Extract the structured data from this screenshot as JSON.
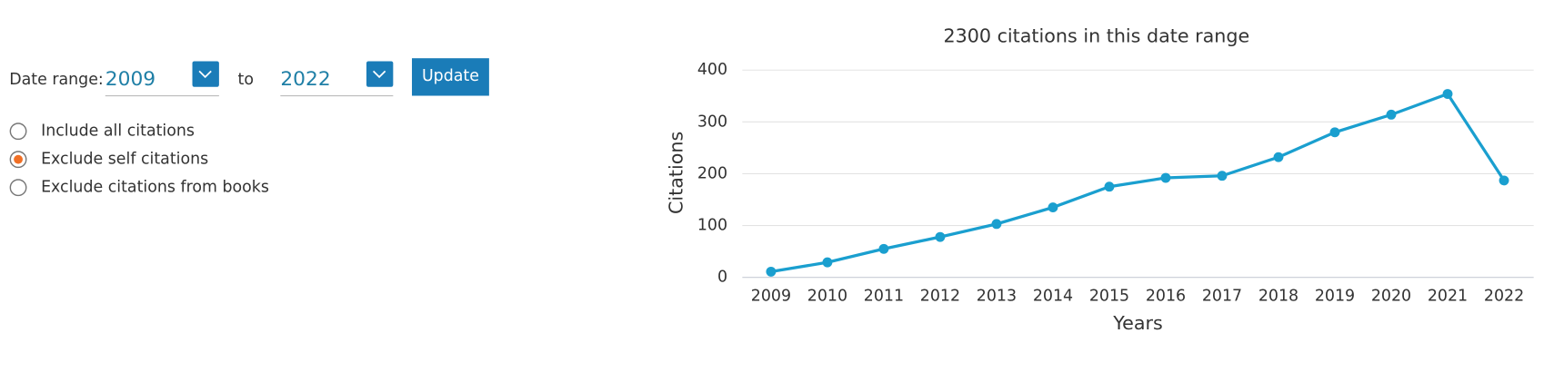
{
  "form": {
    "date_range_label": "Date range:",
    "from_year": "2009",
    "to_label": "to",
    "to_year": "2022",
    "update_button": "Update",
    "options": [
      "Include all citations",
      "Exclude self citations",
      "Exclude citations from books"
    ],
    "selected_option": 1
  },
  "chart_data": {
    "type": "line",
    "title": "2300 citations in this date range",
    "x_label": "Years",
    "y_label": "Citations",
    "categories": [
      "2009",
      "2010",
      "2011",
      "2012",
      "2013",
      "2014",
      "2015",
      "2016",
      "2017",
      "2018",
      "2019",
      "2020",
      "2021",
      "2022"
    ],
    "series": [
      {
        "name": "Citations",
        "color": "#1a9fcf",
        "values": [
          11,
          29,
          55,
          78,
          103,
          135,
          175,
          192,
          196,
          232,
          280,
          314,
          354,
          187
        ]
      }
    ],
    "ylim": [
      0,
      400
    ],
    "yticks": [
      0,
      100,
      200,
      300,
      400
    ],
    "grid": true
  }
}
